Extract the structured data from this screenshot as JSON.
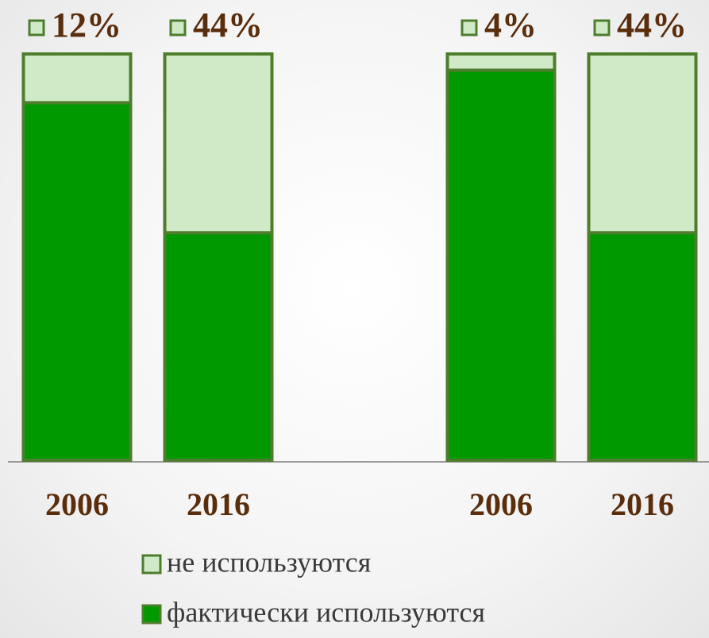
{
  "chart_data": {
    "type": "stacked_bar",
    "categories": [
      "2006",
      "2016",
      "2006",
      "2016"
    ],
    "series": [
      {
        "name": "фактически используются",
        "color": "#009900",
        "values": [
          88,
          56,
          96,
          56
        ]
      },
      {
        "name": "не используются",
        "color": "#d0e9c6",
        "values": [
          12,
          44,
          4,
          44
        ],
        "value_labels": [
          "12%",
          "44%",
          "4%",
          "44%"
        ]
      }
    ],
    "ylim": [
      0,
      100
    ],
    "stroke": "#4e7d2e"
  }
}
